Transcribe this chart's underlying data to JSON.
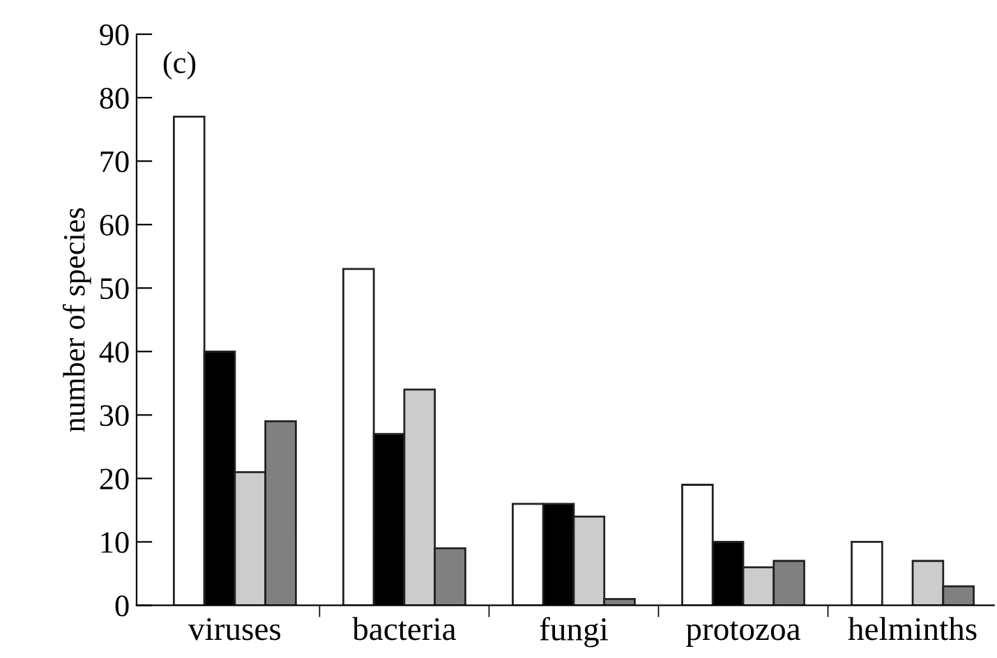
{
  "chart_data": {
    "type": "bar",
    "ylabel": "number of species",
    "annotations": [
      "(c)"
    ],
    "categories": [
      "viruses",
      "bacteria",
      "fungi",
      "protozoa",
      "helminths"
    ],
    "series": [
      {
        "color": "#ffffff",
        "values": [
          77,
          53,
          16,
          19,
          10
        ]
      },
      {
        "color": "#000000",
        "values": [
          40,
          27,
          16,
          10,
          null
        ]
      },
      {
        "color": "#cccccc",
        "values": [
          21,
          34,
          14,
          6,
          7
        ]
      },
      {
        "color": "#808080",
        "values": [
          29,
          9,
          1,
          7,
          3
        ]
      }
    ],
    "ylim": [
      0,
      90
    ],
    "yticks": [
      0,
      10,
      20,
      30,
      40,
      50,
      60,
      70,
      80,
      90
    ],
    "grid": false,
    "legend": false
  }
}
